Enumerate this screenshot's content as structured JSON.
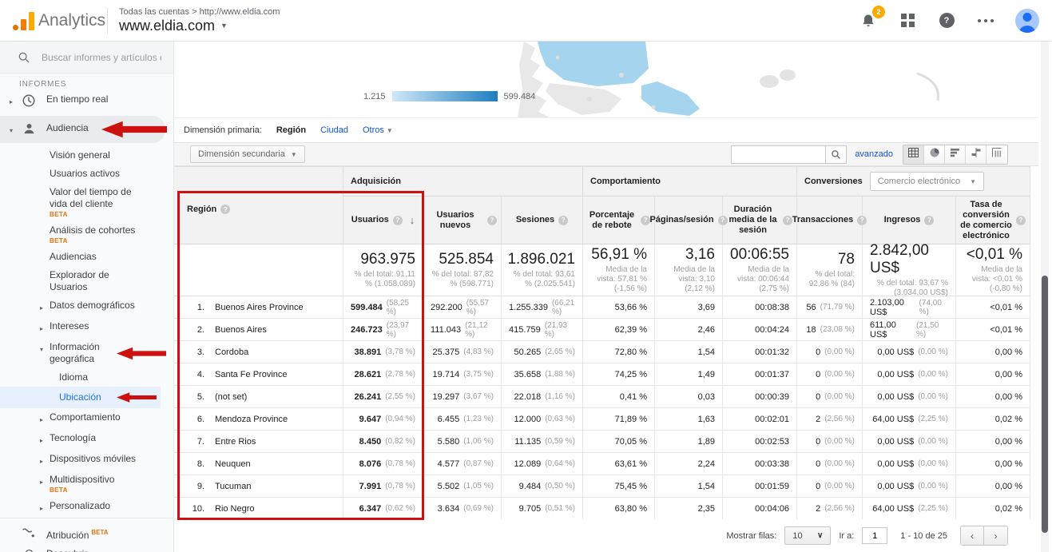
{
  "colors": {
    "annotation_red": "#cc1111",
    "beta_orange": "#e8710a",
    "link_blue": "#1155cc",
    "selected_blue": "#1a73e8",
    "map_highlight": "#a5d4ef",
    "legend_gradient_start": "#cfe8f8",
    "legend_gradient_end": "#1e7dc0"
  },
  "app": {
    "brand": "Analytics",
    "breadcrumb": "Todas las cuentas > http://www.eldia.com",
    "property": "www.eldia.com",
    "notifications_count": "2"
  },
  "sidebar": {
    "search_placeholder": "Buscar informes y artículos de",
    "section_label": "INFORMES",
    "beta_label": "BETA",
    "items": [
      {
        "label": "En tiempo real",
        "level": 0,
        "icon": "clock",
        "expand": "collapsed"
      },
      {
        "label": "Audiencia",
        "level": 0,
        "icon": "person",
        "expand": "expanded",
        "highlight": true
      },
      {
        "label": "Visión general",
        "level": 1
      },
      {
        "label": "Usuarios activos",
        "level": 1
      },
      {
        "label": "Valor del tiempo de vida del cliente",
        "level": 1,
        "beta": true
      },
      {
        "label": "Análisis de cohortes",
        "level": 1,
        "beta": true
      },
      {
        "label": "Audiencias",
        "level": 1
      },
      {
        "label": "Explorador de Usuarios",
        "level": 1
      },
      {
        "label": "Datos demográficos",
        "level": 1,
        "expand": "collapsed"
      },
      {
        "label": "Intereses",
        "level": 1,
        "expand": "collapsed"
      },
      {
        "label": "Información geográfica",
        "level": 1,
        "expand": "expanded"
      },
      {
        "label": "Idioma",
        "level": 2
      },
      {
        "label": "Ubicación",
        "level": 2,
        "selected": true
      },
      {
        "label": "Comportamiento",
        "level": 1,
        "expand": "collapsed"
      },
      {
        "label": "Tecnología",
        "level": 1,
        "expand": "collapsed"
      },
      {
        "label": "Dispositivos móviles",
        "level": 1,
        "expand": "collapsed"
      },
      {
        "label": "Multidispositivo",
        "level": 1,
        "expand": "collapsed",
        "beta": true
      },
      {
        "label": "Personalizado",
        "level": 1,
        "expand": "collapsed"
      },
      {
        "label": "Atribución",
        "level": 0,
        "icon": "attribution",
        "beta": true,
        "bottom": true
      },
      {
        "label": "Descubrir",
        "level": 0,
        "icon": "lightbulb",
        "bottom": true
      }
    ]
  },
  "map": {
    "legend_min": "1.215",
    "legend_max": "599.484"
  },
  "dimensions": {
    "label": "Dimensión primaria:",
    "selected": "Región",
    "options": [
      "Ciudad",
      "Otros"
    ],
    "secondary_button": "Dimensión secundaria",
    "advanced_link": "avanzado"
  },
  "table": {
    "groups": {
      "acquisition": "Adquisición",
      "behavior": "Comportamiento",
      "conversions": "Conversiones",
      "conversions_selector": "Comercio electrónico"
    },
    "columns": [
      "Región",
      "Usuarios",
      "Usuarios nuevos",
      "Sesiones",
      "Porcentaje de rebote",
      "Páginas/sesión",
      "Duración media de la sesión",
      "Transacciones",
      "Ingresos",
      "Tasa de conversión de comercio electrónico"
    ],
    "totals": {
      "usuarios_main": "963.975",
      "usuarios_sub": "% del total: 91,11 % (1.058.089)",
      "nuevos_main": "525.854",
      "nuevos_sub": "% del total: 87,82 % (598.771)",
      "sesiones_main": "1.896.021",
      "sesiones_sub": "% del total: 93,61 % (2.025.541)",
      "rebote_main": "56,91 %",
      "rebote_sub": "Media de la vista: 57,81 % (-1,56 %)",
      "paginas_main": "3,16",
      "paginas_sub": "Media de la vista: 3,10 (2,12 %)",
      "duracion_main": "00:06:55",
      "duracion_sub": "Media de la vista: 00:06:44 (2,75 %)",
      "trans_main": "78",
      "trans_sub": "% del total: 92,86 % (84)",
      "ingresos_main": "2.842,00 US$",
      "ingresos_sub": "% del total: 93,67 % (3.034,00 US$)",
      "tasa_main": "<0,01 %",
      "tasa_sub": "Media de la vista: <0,01 % (-0,80 %)"
    },
    "rows": [
      {
        "rank": "1.",
        "region": "Buenos Aires Province",
        "usuarios": "599.484",
        "usuarios_pct": "(58,25 %)",
        "nuevos": "292.200",
        "nuevos_pct": "(55,57 %)",
        "sesiones": "1.255.339",
        "sesiones_pct": "(66,21 %)",
        "rebote": "53,66 %",
        "paginas": "3,69",
        "duracion": "00:08:38",
        "trans": "56",
        "trans_pct": "(71,79 %)",
        "ingresos": "2.103,00 US$",
        "ingresos_pct": "(74,00 %)",
        "tasa": "<0,01 %"
      },
      {
        "rank": "2.",
        "region": "Buenos Aires",
        "usuarios": "246.723",
        "usuarios_pct": "(23,97 %)",
        "nuevos": "111.043",
        "nuevos_pct": "(21,12 %)",
        "sesiones": "415.759",
        "sesiones_pct": "(21,93 %)",
        "rebote": "62,39 %",
        "paginas": "2,46",
        "duracion": "00:04:24",
        "trans": "18",
        "trans_pct": "(23,08 %)",
        "ingresos": "611,00 US$",
        "ingresos_pct": "(21,50 %)",
        "tasa": "<0,01 %"
      },
      {
        "rank": "3.",
        "region": "Cordoba",
        "usuarios": "38.891",
        "usuarios_pct": "(3,78 %)",
        "nuevos": "25.375",
        "nuevos_pct": "(4,83 %)",
        "sesiones": "50.265",
        "sesiones_pct": "(2,65 %)",
        "rebote": "72,80 %",
        "paginas": "1,54",
        "duracion": "00:01:32",
        "trans": "0",
        "trans_pct": "(0,00 %)",
        "ingresos": "0,00 US$",
        "ingresos_pct": "(0,00 %)",
        "tasa": "0,00 %"
      },
      {
        "rank": "4.",
        "region": "Santa Fe Province",
        "usuarios": "28.621",
        "usuarios_pct": "(2,78 %)",
        "nuevos": "19.714",
        "nuevos_pct": "(3,75 %)",
        "sesiones": "35.658",
        "sesiones_pct": "(1,88 %)",
        "rebote": "74,25 %",
        "paginas": "1,49",
        "duracion": "00:01:37",
        "trans": "0",
        "trans_pct": "(0,00 %)",
        "ingresos": "0,00 US$",
        "ingresos_pct": "(0,00 %)",
        "tasa": "0,00 %"
      },
      {
        "rank": "5.",
        "region": "(not set)",
        "usuarios": "26.241",
        "usuarios_pct": "(2,55 %)",
        "nuevos": "19.297",
        "nuevos_pct": "(3,67 %)",
        "sesiones": "22.018",
        "sesiones_pct": "(1,16 %)",
        "rebote": "0,41 %",
        "paginas": "0,03",
        "duracion": "00:00:39",
        "trans": "0",
        "trans_pct": "(0,00 %)",
        "ingresos": "0,00 US$",
        "ingresos_pct": "(0,00 %)",
        "tasa": "0,00 %"
      },
      {
        "rank": "6.",
        "region": "Mendoza Province",
        "usuarios": "9.647",
        "usuarios_pct": "(0,94 %)",
        "nuevos": "6.455",
        "nuevos_pct": "(1,23 %)",
        "sesiones": "12.000",
        "sesiones_pct": "(0,63 %)",
        "rebote": "71,89 %",
        "paginas": "1,63",
        "duracion": "00:02:01",
        "trans": "2",
        "trans_pct": "(2,56 %)",
        "ingresos": "64,00 US$",
        "ingresos_pct": "(2,25 %)",
        "tasa": "0,02 %"
      },
      {
        "rank": "7.",
        "region": "Entre Rios",
        "usuarios": "8.450",
        "usuarios_pct": "(0,82 %)",
        "nuevos": "5.580",
        "nuevos_pct": "(1,06 %)",
        "sesiones": "11.135",
        "sesiones_pct": "(0,59 %)",
        "rebote": "70,05 %",
        "paginas": "1,89",
        "duracion": "00:02:53",
        "trans": "0",
        "trans_pct": "(0,00 %)",
        "ingresos": "0,00 US$",
        "ingresos_pct": "(0,00 %)",
        "tasa": "0,00 %"
      },
      {
        "rank": "8.",
        "region": "Neuquen",
        "usuarios": "8.076",
        "usuarios_pct": "(0,78 %)",
        "nuevos": "4.577",
        "nuevos_pct": "(0,87 %)",
        "sesiones": "12.089",
        "sesiones_pct": "(0,64 %)",
        "rebote": "63,61 %",
        "paginas": "2,24",
        "duracion": "00:03:38",
        "trans": "0",
        "trans_pct": "(0,00 %)",
        "ingresos": "0,00 US$",
        "ingresos_pct": "(0,00 %)",
        "tasa": "0,00 %"
      },
      {
        "rank": "9.",
        "region": "Tucuman",
        "usuarios": "7.991",
        "usuarios_pct": "(0,78 %)",
        "nuevos": "5.502",
        "nuevos_pct": "(1,05 %)",
        "sesiones": "9.484",
        "sesiones_pct": "(0,50 %)",
        "rebote": "75,45 %",
        "paginas": "1,54",
        "duracion": "00:01:59",
        "trans": "0",
        "trans_pct": "(0,00 %)",
        "ingresos": "0,00 US$",
        "ingresos_pct": "(0,00 %)",
        "tasa": "0,00 %"
      },
      {
        "rank": "10.",
        "region": "Rio Negro",
        "usuarios": "6.347",
        "usuarios_pct": "(0,62 %)",
        "nuevos": "3.634",
        "nuevos_pct": "(0,69 %)",
        "sesiones": "9.705",
        "sesiones_pct": "(0,51 %)",
        "rebote": "63,80 %",
        "paginas": "2,35",
        "duracion": "00:04:06",
        "trans": "2",
        "trans_pct": "(2,56 %)",
        "ingresos": "64,00 US$",
        "ingresos_pct": "(2,25 %)",
        "tasa": "0,02 %"
      }
    ]
  },
  "footer": {
    "rows_label": "Mostrar filas:",
    "rows_value": "10",
    "goto_label": "Ir a:",
    "goto_value": "1",
    "range_text": "1 - 10 de 25"
  }
}
